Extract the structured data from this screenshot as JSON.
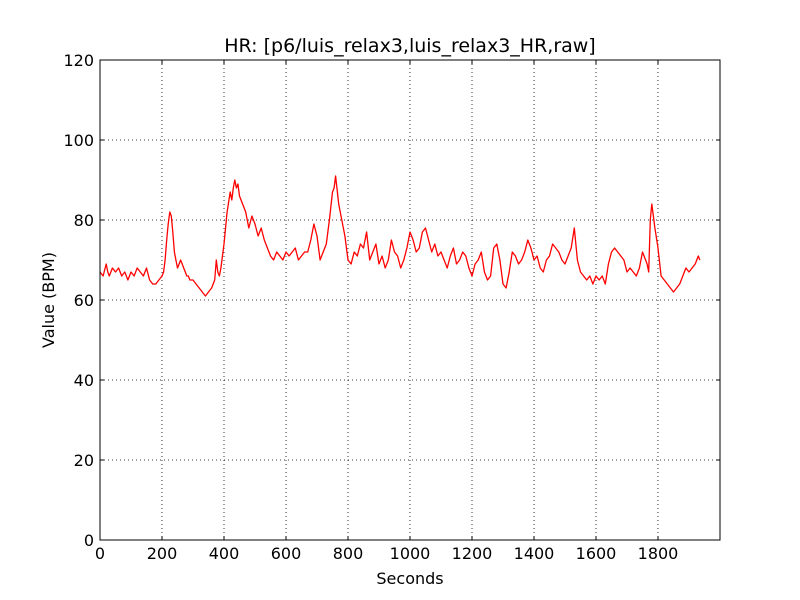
{
  "chart_data": {
    "type": "line",
    "title": "HR: [p6/luis_relax3,luis_relax3_HR,raw]",
    "xlabel": "Seconds",
    "ylabel": "Value (BPM)",
    "xlim": [
      0,
      2000
    ],
    "ylim": [
      0,
      120
    ],
    "xticks": [
      0,
      200,
      400,
      600,
      800,
      1000,
      1200,
      1400,
      1600,
      1800
    ],
    "yticks": [
      0,
      20,
      40,
      60,
      80,
      100,
      120
    ],
    "grid": true,
    "line_color": "#ff0000",
    "series": [
      {
        "x": [
          0,
          10,
          20,
          25,
          30,
          40,
          50,
          60,
          70,
          80,
          90,
          100,
          110,
          120,
          130,
          140,
          150,
          160,
          170,
          180,
          190,
          200,
          205,
          210,
          215,
          220,
          225,
          230,
          235,
          240,
          245,
          250,
          255,
          260,
          265,
          270,
          275,
          280,
          285,
          290,
          300,
          310,
          320,
          330,
          340,
          350,
          360,
          370,
          375,
          380,
          385,
          390,
          400,
          410,
          420,
          425,
          430,
          435,
          440,
          445,
          450,
          460,
          470,
          480,
          490,
          500,
          510,
          520,
          530,
          540,
          550,
          560,
          570,
          580,
          590,
          600,
          610,
          620,
          630,
          640,
          650,
          660,
          670,
          680,
          690,
          700,
          710,
          720,
          730,
          740,
          750,
          755,
          760,
          770,
          780,
          790,
          800,
          810,
          820,
          830,
          840,
          850,
          860,
          870,
          880,
          890,
          900,
          910,
          920,
          930,
          940,
          950,
          960,
          970,
          980,
          990,
          1000,
          1010,
          1020,
          1030,
          1040,
          1050,
          1060,
          1070,
          1080,
          1090,
          1100,
          1110,
          1120,
          1130,
          1140,
          1150,
          1160,
          1170,
          1180,
          1190,
          1200,
          1210,
          1220,
          1230,
          1240,
          1250,
          1260,
          1270,
          1280,
          1290,
          1300,
          1310,
          1320,
          1330,
          1340,
          1350,
          1360,
          1370,
          1380,
          1390,
          1400,
          1410,
          1420,
          1430,
          1440,
          1450,
          1460,
          1470,
          1480,
          1490,
          1500,
          1510,
          1520,
          1530,
          1540,
          1550,
          1560,
          1570,
          1580,
          1590,
          1600,
          1610,
          1620,
          1630,
          1640,
          1650,
          1660,
          1670,
          1680,
          1690,
          1700,
          1710,
          1720,
          1730,
          1740,
          1750,
          1760,
          1765,
          1770,
          1775,
          1780,
          1790,
          1800,
          1810,
          1820,
          1830,
          1840,
          1850,
          1860,
          1870,
          1880,
          1890,
          1900,
          1910,
          1920,
          1930,
          1935
        ],
        "y": [
          67,
          66,
          69,
          67,
          66,
          68,
          67,
          68,
          66,
          67,
          65,
          67,
          66,
          68,
          67,
          66,
          68,
          65,
          64,
          64,
          65,
          66,
          67,
          70,
          75,
          79,
          82,
          81,
          77,
          72,
          70,
          68,
          69,
          70,
          69,
          68,
          67,
          66,
          66,
          65,
          65,
          64,
          63,
          62,
          61,
          62,
          63,
          65,
          70,
          67,
          66,
          68,
          74,
          82,
          87,
          85,
          88,
          90,
          88,
          89,
          86,
          84,
          82,
          78,
          81,
          79,
          76,
          78,
          75,
          73,
          71,
          70,
          72,
          71,
          70,
          72,
          71,
          72,
          73,
          70,
          71,
          72,
          72,
          75,
          79,
          76,
          70,
          72,
          74,
          80,
          87,
          88,
          91,
          84,
          80,
          76,
          70,
          69,
          72,
          71,
          74,
          73,
          77,
          70,
          72,
          74,
          69,
          71,
          68,
          70,
          75,
          72,
          71,
          68,
          70,
          73,
          77,
          75,
          72,
          73,
          77,
          78,
          75,
          72,
          74,
          71,
          72,
          70,
          68,
          71,
          73,
          69,
          70,
          72,
          71,
          68,
          66,
          69,
          70,
          72,
          67,
          65,
          66,
          73,
          74,
          70,
          64,
          63,
          67,
          72,
          71,
          69,
          70,
          72,
          75,
          73,
          70,
          71,
          68,
          67,
          70,
          71,
          74,
          73,
          72,
          70,
          69,
          71,
          73,
          78,
          70,
          67,
          66,
          65,
          66,
          64,
          66,
          65,
          66,
          64,
          69,
          72,
          73,
          72,
          71,
          70,
          67,
          68,
          67,
          66,
          68,
          72,
          70,
          69,
          67,
          80,
          84,
          78,
          73,
          66,
          65,
          64,
          63,
          62,
          63,
          64,
          66,
          68,
          67,
          68,
          69,
          71,
          70
        ]
      }
    ]
  }
}
